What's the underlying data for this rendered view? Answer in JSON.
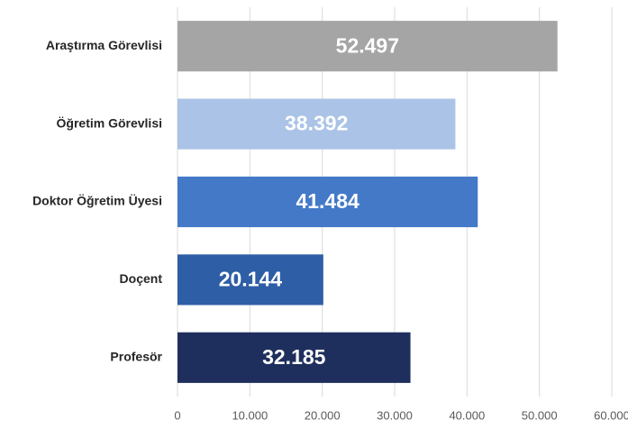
{
  "chart_data": {
    "type": "barh",
    "categories": [
      "Araştırma Görevlisi",
      "Öğretim Görevlisi",
      "Doktor Öğretim Üyesi",
      "Doçent",
      "Profesör"
    ],
    "values": [
      52497,
      38392,
      41484,
      20144,
      32185
    ],
    "value_labels": [
      "52.497",
      "38.392",
      "41.484",
      "20.144",
      "32.185"
    ],
    "colors": [
      "#a5a5a5",
      "#abc3e6",
      "#4479c8",
      "#2e5ea5",
      "#1f2f5d"
    ],
    "xlim": [
      0,
      60000
    ],
    "xticks": [
      0,
      {
        "value": 10000,
        "label": "10.000"
      },
      {
        "value": 20000,
        "label": "20.000"
      },
      {
        "value": 30000,
        "label": "30.000"
      },
      {
        "value": 40000,
        "label": "40.000"
      },
      {
        "value": 50000,
        "label": "50.000"
      },
      {
        "value": 60000,
        "label": "60.000"
      }
    ],
    "grid": true
  }
}
